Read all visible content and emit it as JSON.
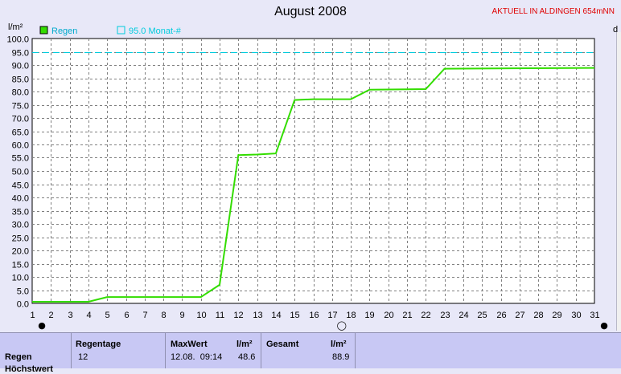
{
  "title": "August 2008",
  "station": "AKTUELL IN ALDINGEN 654mNN",
  "right_edge_label": "d",
  "colors": {
    "rain_line": "#33dd00",
    "month_line": "#00ccdd",
    "station_text": "#e00000",
    "grid": "#808080"
  },
  "chart_data": {
    "type": "line",
    "title": "August 2008",
    "ylabel": "l/m²",
    "ylim": [
      0,
      100
    ],
    "xlim": [
      1,
      31
    ],
    "y_ticks": [
      "0.0",
      "5.0",
      "10.0",
      "15.0",
      "20.0",
      "25.0",
      "30.0",
      "35.0",
      "40.0",
      "45.0",
      "50.0",
      "55.0",
      "60.0",
      "65.0",
      "70.0",
      "75.0",
      "80.0",
      "85.0",
      "90.0",
      "95.0",
      "100.0"
    ],
    "x_ticks": [
      "1",
      "2",
      "3",
      "4",
      "5",
      "6",
      "7",
      "8",
      "9",
      "10",
      "11",
      "12",
      "13",
      "14",
      "15",
      "16",
      "17",
      "18",
      "19",
      "20",
      "21",
      "22",
      "23",
      "24",
      "25",
      "26",
      "27",
      "28",
      "29",
      "30",
      "31"
    ],
    "legend": [
      {
        "label": "Regen",
        "color": "#33dd00",
        "style": "filled-box"
      },
      {
        "label": "95.0 Monat-#",
        "color": "#00ccdd",
        "style": "outline-box"
      }
    ],
    "reference_line": {
      "name": "95.0 Monat-#",
      "value": 95.0,
      "dashed": true
    },
    "series": [
      {
        "name": "Regen",
        "x": [
          1,
          4,
          5,
          10,
          11,
          12,
          13,
          14,
          15,
          16,
          18,
          19,
          22,
          23,
          31
        ],
        "values": [
          0.6,
          0.6,
          2.4,
          2.4,
          7.0,
          56.0,
          56.2,
          56.6,
          76.8,
          77.1,
          77.1,
          80.7,
          80.9,
          88.6,
          88.9
        ]
      }
    ],
    "grid": true,
    "legend_position": "top-left"
  },
  "markers": {
    "left": "●",
    "middle": "◯",
    "right": "●"
  },
  "summary": {
    "row_label": "Regen",
    "row_label2": "Höchstwert",
    "regentage_label": "Regentage",
    "regentage_value": "12",
    "maxwert_label": "MaxWert",
    "maxwert_unit": "l/m²",
    "maxwert_date": "12.08.  09:14",
    "maxwert_value": "48.6",
    "gesamt_label": "Gesamt",
    "gesamt_unit": "l/m²",
    "gesamt_value": "88.9"
  }
}
